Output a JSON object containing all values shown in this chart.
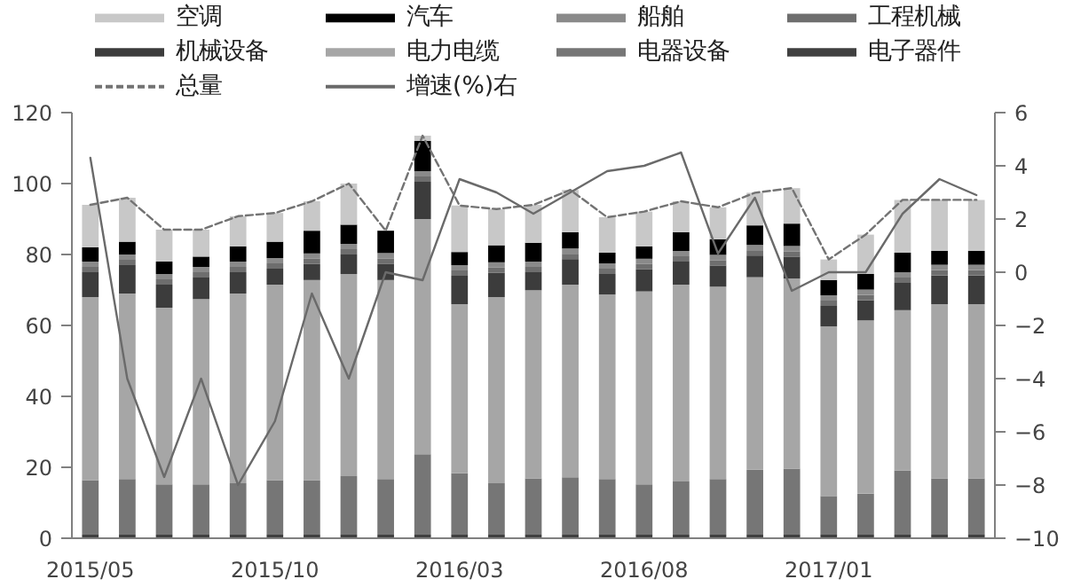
{
  "chart_data": {
    "type": "bar",
    "stacked": true,
    "categories": [
      "2015/05",
      null,
      null,
      null,
      null,
      "2015/10",
      null,
      null,
      null,
      null,
      "2016/03",
      null,
      null,
      null,
      null,
      "2016/08",
      null,
      null,
      null,
      null,
      "2017/01",
      null,
      null,
      null,
      null
    ],
    "series": [
      {
        "name": "电子器件",
        "color": "#404040",
        "values": [
          1,
          1,
          1,
          1,
          1,
          1,
          1,
          1,
          1,
          1,
          1,
          1,
          1,
          1,
          1,
          1,
          1,
          1,
          1,
          1,
          1,
          1,
          1,
          1,
          1
        ]
      },
      {
        "name": "电器设备",
        "color": "#767676",
        "values": [
          15.4,
          15.7,
          14.2,
          14.2,
          14.5,
          15.4,
          15.4,
          16.5,
          15.7,
          22.7,
          17.3,
          14.5,
          15.9,
          16.2,
          15.7,
          14.2,
          15,
          15.7,
          18.3,
          18.6,
          10.9,
          11.6,
          18.1,
          15.9,
          15.9
        ]
      },
      {
        "name": "电力电缆",
        "color": "#a6a6a6",
        "values": [
          51.6,
          52.3,
          49.8,
          52.2,
          53.5,
          55.1,
          56.4,
          57,
          56.1,
          66.3,
          47.7,
          52.5,
          53,
          54.3,
          52,
          54.4,
          55.5,
          54.2,
          54.3,
          53.6,
          47.8,
          48.8,
          45.2,
          49.1,
          49.1
        ]
      },
      {
        "name": "机械设备",
        "color": "#3c3c3c",
        "values": [
          7,
          8,
          6.5,
          6.1,
          6,
          4.5,
          4.5,
          5.5,
          4.6,
          10.5,
          8,
          6.8,
          5.1,
          7.2,
          5.8,
          6.2,
          6.5,
          6,
          6.1,
          6.2,
          5.8,
          5.7,
          7.7,
          8.1,
          8.1
        ]
      },
      {
        "name": "工程机械",
        "color": "#6e6e6e",
        "values": [
          1.5,
          1.5,
          1.5,
          1.5,
          1.5,
          1.5,
          1.5,
          1.5,
          1.5,
          1.5,
          1.5,
          1.5,
          1.5,
          1.5,
          1.5,
          1.5,
          1.5,
          1.5,
          1.5,
          1.5,
          1.5,
          1.5,
          1.5,
          1.5,
          1.5
        ]
      },
      {
        "name": "船舶",
        "color": "#8a8a8a",
        "values": [
          1.5,
          1.5,
          1.5,
          1.5,
          1.5,
          1.5,
          1.5,
          1.5,
          1.5,
          1.5,
          1.5,
          1.5,
          1.5,
          1.5,
          1.5,
          1.5,
          1.5,
          1.5,
          1.5,
          1.5,
          1.5,
          1.5,
          1.5,
          1.5,
          1.5
        ]
      },
      {
        "name": "汽车",
        "color": "#000000",
        "values": [
          4,
          3.6,
          3.5,
          2.9,
          4.3,
          4.6,
          6.4,
          5.4,
          6.3,
          8.5,
          3.7,
          4.8,
          5.3,
          4.6,
          3,
          3.5,
          5.3,
          4.4,
          5.5,
          6.3,
          4.3,
          4.4,
          5.5,
          3.9,
          3.9
        ]
      },
      {
        "name": "空调",
        "color": "#c8c8c8",
        "values": [
          12,
          12.4,
          9,
          7.6,
          8.5,
          8.1,
          8.3,
          11.6,
          0,
          1.5,
          13.1,
          10.2,
          10.7,
          11.9,
          10,
          9.8,
          8.7,
          9,
          9.2,
          10,
          5.8,
          11.1,
          14.9,
          14.4,
          14.4
        ]
      },
      {
        "name": "总量",
        "type": "line",
        "line_style": "dashed",
        "color": "#737373",
        "values": [
          94,
          96,
          87,
          87,
          90.8,
          91.7,
          95,
          100,
          86.7,
          113.5,
          93.8,
          92.8,
          94,
          98.2,
          90.5,
          92.1,
          95,
          93.3,
          97.4,
          98.7,
          78.6,
          85.6,
          95.4,
          95.4,
          95.4
        ]
      },
      {
        "name": "增速(%)右",
        "type": "line",
        "axis": "y2",
        "line_style": "solid",
        "color": "#6a6a6a",
        "values": [
          4.3,
          -4.0,
          -7.7,
          -4.0,
          -8.0,
          -5.6,
          -0.8,
          -4.0,
          0.0,
          -0.3,
          3.5,
          3.0,
          2.2,
          3.0,
          3.8,
          4.0,
          4.5,
          0.7,
          2.8,
          -0.7,
          0.0,
          0.0,
          2.2,
          3.5,
          2.9
        ]
      }
    ],
    "ylim": [
      0,
      120
    ],
    "yticks": [
      0,
      20,
      40,
      60,
      80,
      100,
      120
    ],
    "y2lim": [
      -10,
      6
    ],
    "y2ticks": [
      -10,
      -8,
      -6,
      -4,
      -2,
      0,
      2,
      4,
      6
    ],
    "grid": false,
    "legend": "top"
  }
}
